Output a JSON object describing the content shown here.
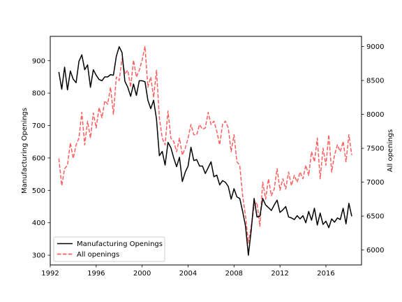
{
  "chart_data": {
    "type": "line",
    "title": "",
    "xlabel": "",
    "ylabel_left": "Manufacturing Openings",
    "ylabel_right": "All openings",
    "xlim": [
      1992.0,
      2019.1
    ],
    "ylim_left": [
      270,
      975
    ],
    "ylim_right": [
      5780,
      9150
    ],
    "x_ticks": [
      1992,
      1996,
      2000,
      2004,
      2008,
      2012,
      2016
    ],
    "x_tick_labels": [
      "1992",
      "1996",
      "2000",
      "2004",
      "2008",
      "2012",
      "2016"
    ],
    "y_left_ticks": [
      300,
      400,
      500,
      600,
      700,
      800,
      900
    ],
    "y_left_tick_labels": [
      "300",
      "400",
      "500",
      "600",
      "700",
      "800",
      "900"
    ],
    "y_right_ticks": [
      6000,
      6500,
      7000,
      7500,
      8000,
      8500,
      9000
    ],
    "y_right_tick_labels": [
      "6000",
      "6500",
      "7000",
      "7500",
      "8000",
      "8500",
      "9000"
    ],
    "grid": false,
    "legend_position": "lower-left",
    "series": [
      {
        "name": "Manufacturing Openings",
        "axis": "left",
        "color": "#000000",
        "style": "solid",
        "points": [
          [
            1992.75,
            865
          ],
          [
            1993.0,
            812
          ],
          [
            1993.25,
            880
          ],
          [
            1993.5,
            810
          ],
          [
            1993.75,
            868
          ],
          [
            1994.0,
            843
          ],
          [
            1994.25,
            832
          ],
          [
            1994.5,
            898
          ],
          [
            1994.75,
            918
          ],
          [
            1995.0,
            872
          ],
          [
            1995.25,
            887
          ],
          [
            1995.5,
            818
          ],
          [
            1995.75,
            872
          ],
          [
            1996.0,
            855
          ],
          [
            1996.25,
            842
          ],
          [
            1996.5,
            838
          ],
          [
            1996.75,
            850
          ],
          [
            1997.0,
            850
          ],
          [
            1997.25,
            857
          ],
          [
            1997.5,
            855
          ],
          [
            1997.75,
            913
          ],
          [
            1998.0,
            943
          ],
          [
            1998.25,
            925
          ],
          [
            1998.5,
            836
          ],
          [
            1998.75,
            818
          ],
          [
            1999.0,
            790
          ],
          [
            1999.25,
            828
          ],
          [
            1999.5,
            793
          ],
          [
            1999.75,
            838
          ],
          [
            2000.0,
            838
          ],
          [
            2000.25,
            835
          ],
          [
            2000.5,
            778
          ],
          [
            2000.75,
            752
          ],
          [
            2001.0,
            778
          ],
          [
            2001.25,
            720
          ],
          [
            2001.5,
            607
          ],
          [
            2001.75,
            620
          ],
          [
            2002.0,
            578
          ],
          [
            2002.25,
            648
          ],
          [
            2002.5,
            632
          ],
          [
            2002.75,
            600
          ],
          [
            2003.0,
            573
          ],
          [
            2003.25,
            602
          ],
          [
            2003.5,
            527
          ],
          [
            2003.75,
            556
          ],
          [
            2004.0,
            575
          ],
          [
            2004.25,
            633
          ],
          [
            2004.5,
            592
          ],
          [
            2004.75,
            595
          ],
          [
            2005.0,
            575
          ],
          [
            2005.25,
            575
          ],
          [
            2005.5,
            552
          ],
          [
            2005.75,
            570
          ],
          [
            2006.0,
            588
          ],
          [
            2006.25,
            542
          ],
          [
            2006.5,
            547
          ],
          [
            2006.75,
            517
          ],
          [
            2007.0,
            530
          ],
          [
            2007.25,
            525
          ],
          [
            2007.5,
            512
          ],
          [
            2007.75,
            473
          ],
          [
            2008.0,
            505
          ],
          [
            2008.25,
            480
          ],
          [
            2008.5,
            475
          ],
          [
            2008.75,
            435
          ],
          [
            2009.0,
            390
          ],
          [
            2009.25,
            300
          ],
          [
            2009.5,
            378
          ],
          [
            2009.75,
            475
          ],
          [
            2010.0,
            418
          ],
          [
            2010.25,
            420
          ],
          [
            2010.5,
            475
          ],
          [
            2010.75,
            455
          ],
          [
            2011.0,
            447
          ],
          [
            2011.25,
            438
          ],
          [
            2011.5,
            455
          ],
          [
            2011.75,
            470
          ],
          [
            2012.0,
            432
          ],
          [
            2012.25,
            440
          ],
          [
            2012.5,
            450
          ],
          [
            2012.75,
            418
          ],
          [
            2013.0,
            415
          ],
          [
            2013.25,
            410
          ],
          [
            2013.5,
            422
          ],
          [
            2013.75,
            412
          ],
          [
            2014.0,
            422
          ],
          [
            2014.25,
            400
          ],
          [
            2014.5,
            435
          ],
          [
            2014.75,
            408
          ],
          [
            2015.0,
            445
          ],
          [
            2015.25,
            393
          ],
          [
            2015.5,
            430
          ],
          [
            2015.75,
            395
          ],
          [
            2016.0,
            405
          ],
          [
            2016.25,
            385
          ],
          [
            2016.5,
            412
          ],
          [
            2016.75,
            402
          ],
          [
            2017.0,
            415
          ],
          [
            2017.25,
            410
          ],
          [
            2017.5,
            445
          ],
          [
            2017.75,
            397
          ],
          [
            2018.0,
            460
          ],
          [
            2018.25,
            420
          ]
        ]
      },
      {
        "name": "All openings",
        "axis": "right",
        "color": "#ff4c4c",
        "style": "dashed",
        "points": [
          [
            1992.75,
            7350
          ],
          [
            1993.0,
            6950
          ],
          [
            1993.25,
            7200
          ],
          [
            1993.5,
            7250
          ],
          [
            1993.75,
            7580
          ],
          [
            1994.0,
            7350
          ],
          [
            1994.25,
            7550
          ],
          [
            1994.5,
            7650
          ],
          [
            1994.75,
            8030
          ],
          [
            1995.0,
            7550
          ],
          [
            1995.25,
            7900
          ],
          [
            1995.5,
            7650
          ],
          [
            1995.75,
            8020
          ],
          [
            1996.0,
            7800
          ],
          [
            1996.25,
            8100
          ],
          [
            1996.5,
            7950
          ],
          [
            1996.75,
            8200
          ],
          [
            1997.0,
            8150
          ],
          [
            1997.25,
            8400
          ],
          [
            1997.5,
            8000
          ],
          [
            1997.75,
            8550
          ],
          [
            1998.0,
            8500
          ],
          [
            1998.25,
            8820
          ],
          [
            1998.5,
            8600
          ],
          [
            1998.75,
            8650
          ],
          [
            1999.0,
            8400
          ],
          [
            1999.25,
            8800
          ],
          [
            1999.5,
            8550
          ],
          [
            1999.75,
            8650
          ],
          [
            2000.0,
            8800
          ],
          [
            2000.25,
            9000
          ],
          [
            2000.5,
            8400
          ],
          [
            2000.75,
            8550
          ],
          [
            2001.0,
            8250
          ],
          [
            2001.25,
            8650
          ],
          [
            2001.5,
            7950
          ],
          [
            2001.75,
            7650
          ],
          [
            2002.0,
            7550
          ],
          [
            2002.25,
            8050
          ],
          [
            2002.5,
            7650
          ],
          [
            2002.75,
            7600
          ],
          [
            2003.0,
            7450
          ],
          [
            2003.25,
            7650
          ],
          [
            2003.5,
            7400
          ],
          [
            2003.75,
            7500
          ],
          [
            2004.0,
            7650
          ],
          [
            2004.25,
            7850
          ],
          [
            2004.5,
            7700
          ],
          [
            2004.75,
            7700
          ],
          [
            2005.0,
            7850
          ],
          [
            2005.25,
            7780
          ],
          [
            2005.5,
            7800
          ],
          [
            2005.75,
            8030
          ],
          [
            2006.0,
            7850
          ],
          [
            2006.25,
            7900
          ],
          [
            2006.5,
            7750
          ],
          [
            2006.75,
            7550
          ],
          [
            2007.0,
            7850
          ],
          [
            2007.25,
            7900
          ],
          [
            2007.5,
            7800
          ],
          [
            2007.75,
            7450
          ],
          [
            2008.0,
            7700
          ],
          [
            2008.25,
            7300
          ],
          [
            2008.5,
            7250
          ],
          [
            2008.75,
            6800
          ],
          [
            2009.0,
            6500
          ],
          [
            2009.25,
            6100
          ],
          [
            2009.5,
            6350
          ],
          [
            2009.75,
            6650
          ],
          [
            2010.0,
            6700
          ],
          [
            2010.25,
            6350
          ],
          [
            2010.5,
            7000
          ],
          [
            2010.75,
            6750
          ],
          [
            2011.0,
            7050
          ],
          [
            2011.25,
            6800
          ],
          [
            2011.5,
            6900
          ],
          [
            2011.75,
            7200
          ],
          [
            2012.0,
            6880
          ],
          [
            2012.25,
            7050
          ],
          [
            2012.5,
            6900
          ],
          [
            2012.75,
            7150
          ],
          [
            2013.0,
            6950
          ],
          [
            2013.25,
            7100
          ],
          [
            2013.5,
            7000
          ],
          [
            2013.75,
            7150
          ],
          [
            2014.0,
            7050
          ],
          [
            2014.25,
            7250
          ],
          [
            2014.5,
            7100
          ],
          [
            2014.75,
            7450
          ],
          [
            2015.0,
            7300
          ],
          [
            2015.25,
            7650
          ],
          [
            2015.5,
            7050
          ],
          [
            2015.75,
            7500
          ],
          [
            2016.0,
            7250
          ],
          [
            2016.25,
            7700
          ],
          [
            2016.5,
            7150
          ],
          [
            2016.75,
            7400
          ],
          [
            2017.0,
            7550
          ],
          [
            2017.25,
            7450
          ],
          [
            2017.5,
            7600
          ],
          [
            2017.75,
            7300
          ],
          [
            2018.0,
            7700
          ],
          [
            2018.25,
            7400
          ]
        ]
      }
    ]
  }
}
